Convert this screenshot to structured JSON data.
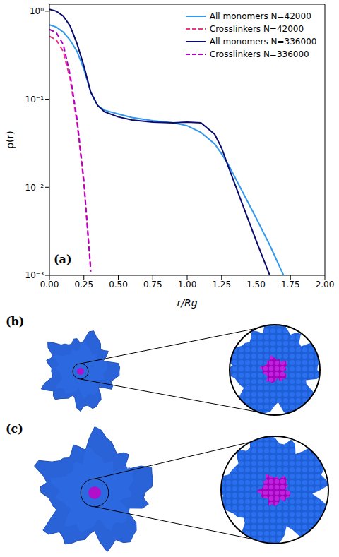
{
  "chart_data": {
    "type": "line",
    "panel_label": "(a)",
    "xlabel": "r/Rg",
    "ylabel": "ρ(r)",
    "log": "y",
    "legend": "upper right",
    "x": [
      0,
      0.05,
      0.1,
      0.15,
      0.2,
      0.25,
      0.3,
      0.35,
      0.4,
      0.5,
      0.6,
      0.75,
      0.9,
      1.0,
      1.1,
      1.2,
      1.25,
      1.3,
      1.4,
      1.5,
      1.6,
      1.7,
      1.8,
      1.9,
      2.0
    ],
    "series": [
      {
        "name": "All monomers N=42000",
        "color": "#3399ee",
        "line_style": "solid",
        "values": [
          0.7,
          0.66,
          0.58,
          0.47,
          0.35,
          0.22,
          0.12,
          0.085,
          0.075,
          0.068,
          0.062,
          0.057,
          0.054,
          0.05,
          0.042,
          0.031,
          0.024,
          0.018,
          0.009,
          0.0045,
          0.0022,
          0.001,
          null,
          null,
          null
        ]
      },
      {
        "name": "Crosslinkers N=42000",
        "color": "#ee3388",
        "line_style": "dashed",
        "values": [
          0.52,
          0.47,
          0.35,
          0.17,
          0.055,
          0.011,
          0.0012,
          null,
          null,
          null,
          null,
          null,
          null,
          null,
          null,
          null,
          null,
          null,
          null,
          null,
          null,
          null,
          null,
          null,
          null
        ]
      },
      {
        "name": "All monomers N=336000",
        "color": "#0b0b6e",
        "line_style": "solid",
        "values": [
          1.05,
          1.0,
          0.88,
          0.68,
          0.43,
          0.24,
          0.12,
          0.085,
          0.072,
          0.063,
          0.058,
          0.055,
          0.054,
          0.055,
          0.054,
          0.04,
          0.028,
          0.017,
          0.0065,
          0.0025,
          0.001,
          null,
          null,
          null,
          null
        ]
      },
      {
        "name": "Crosslinkers N=336000",
        "color": "#b000c8",
        "line_style": "dashed",
        "values": [
          0.62,
          0.57,
          0.42,
          0.19,
          0.06,
          0.012,
          0.0011,
          null,
          null,
          null,
          null,
          null,
          null,
          null,
          null,
          null,
          null,
          null,
          null,
          null,
          null,
          null,
          null,
          null,
          null
        ]
      }
    ],
    "xlim": [
      0,
      2
    ],
    "xticks": [
      {
        "value": 0,
        "label": "0.00"
      },
      {
        "value": 0.25,
        "label": "0.25"
      },
      {
        "value": 0.5,
        "label": "0.50"
      },
      {
        "value": 0.75,
        "label": "0.75"
      },
      {
        "value": 1,
        "label": "1.00"
      },
      {
        "value": 1.25,
        "label": "1.25"
      },
      {
        "value": 1.5,
        "label": "1.50"
      },
      {
        "value": 1.75,
        "label": "1.75"
      },
      {
        "value": 2,
        "label": "2.00"
      }
    ],
    "ylim": [
      0.001,
      1.2
    ],
    "yticks": [
      {
        "value": 0.001,
        "label": "10⁻³"
      },
      {
        "value": 0.01,
        "label": "10⁻²"
      },
      {
        "value": 0.1,
        "label": "10⁻¹"
      },
      {
        "value": 1,
        "label": "10⁰"
      }
    ]
  },
  "panels": [
    "(b)",
    "(c)"
  ]
}
